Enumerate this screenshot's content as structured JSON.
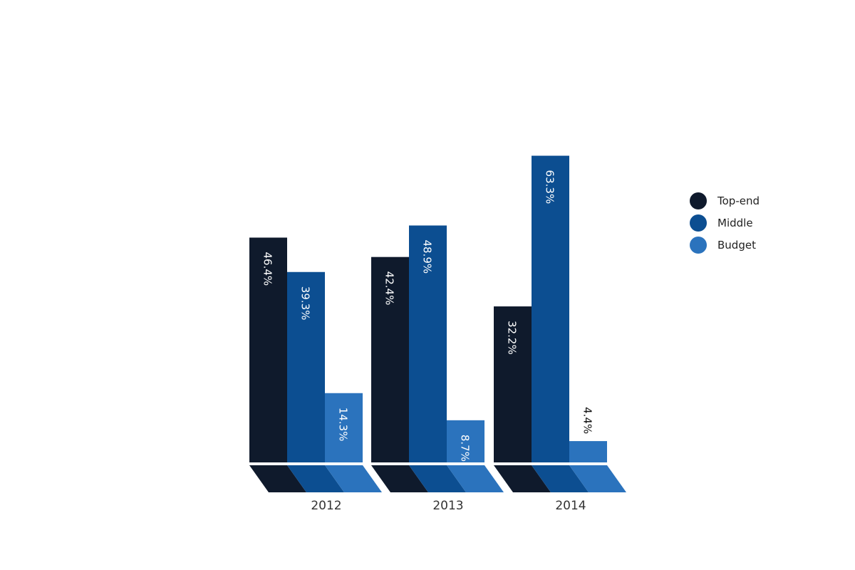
{
  "chart_data": {
    "type": "bar",
    "categories": [
      "2012",
      "2013",
      "2014"
    ],
    "series": [
      {
        "name": "Top-end",
        "color": "#0f1a2c",
        "values": [
          46.4,
          42.4,
          32.2
        ],
        "labels": [
          "46.4%",
          "42.4%",
          "32.2%"
        ]
      },
      {
        "name": "Middle",
        "color": "#0c4e91",
        "values": [
          39.3,
          48.9,
          63.3
        ],
        "labels": [
          "39.3%",
          "48.9%",
          "63.3%"
        ]
      },
      {
        "name": "Budget",
        "color": "#2b73bd",
        "values": [
          14.3,
          8.7,
          4.4
        ],
        "labels": [
          "14.3%",
          "8.7%",
          "4.4%"
        ]
      }
    ],
    "ylim": [
      0,
      100
    ],
    "grid": false,
    "legend_position": "right"
  }
}
